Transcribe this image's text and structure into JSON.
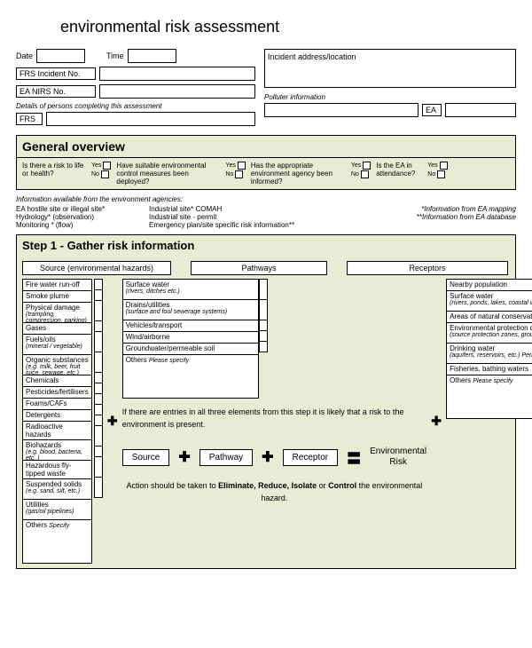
{
  "title": "environmental risk assessment",
  "fields": {
    "date": "Date",
    "time": "Time",
    "frs_incident": "FRS Incident No.",
    "ea_nirs": "EA NIRS No.",
    "incident_address": "Incident address/location",
    "polluter": "Polluter information",
    "details_note": "Details of persons completing this assessment",
    "frs": "FRS",
    "ea": "EA"
  },
  "overview": {
    "header": "General overview",
    "q1": "Is there a risk to life or health?",
    "q2": "Have suitable environmental control measures been deployed?",
    "q3": "Has the appropriate environment agency been informed?",
    "q4": "Is the EA in attendance?",
    "yes": "Yes",
    "no": "No"
  },
  "info_block": {
    "header": "Information available from the environment agencies:",
    "r1c1": "EA hostile site or illegal site*",
    "r1c2": "Industrial site* COMAH",
    "r2c1": "Hydrology* (observation)",
    "r2c2": "Industrial site - permit",
    "r3c1": "Monitoring * (flow)",
    "r3c2": "Emergency plan/site specific risk information**",
    "note1": "*Information from EA mapping",
    "note2": "**Information from EA database"
  },
  "step1": {
    "header": "Step 1 - Gather risk information",
    "col1": "Source (environmental hazards)",
    "col2": "Pathways",
    "col3": "Receptors",
    "sources": [
      {
        "t": "Fire water run-off"
      },
      {
        "t": "Smoke plume"
      },
      {
        "t": "Physical damage",
        "s": "(trampling, compression, parking)"
      },
      {
        "t": "Gases"
      },
      {
        "t": "Fuels/oils",
        "s": "(mineral / vegetable)"
      },
      {
        "t": "Organic substances",
        "s": "(e.g. milk, beer, fruit juice, sewage, etc.)"
      },
      {
        "t": "Chemicals"
      },
      {
        "t": "Pesticides/fertilisers"
      },
      {
        "t": "Foams/CAFs"
      },
      {
        "t": "Detergents"
      },
      {
        "t": "Radioactive hazards"
      },
      {
        "t": "Biohazards",
        "s": "(e.g. blood, bacteria, etc..)"
      },
      {
        "t": "Hazardous fly-tipped waste"
      },
      {
        "t": "Suspended solids",
        "s": "(e.g. sand, silt, etc.)"
      },
      {
        "t": "Utilities",
        "s": "(gas/oil pipelines)"
      }
    ],
    "pathways": [
      {
        "t": "Surface water",
        "s": "(rivers, ditches etc.)"
      },
      {
        "t": "Drains/utilities",
        "s": "(surface and foul sewerage systems)"
      },
      {
        "t": "Vehicles/transport"
      },
      {
        "t": "Wind/airborne"
      },
      {
        "t": "Groundwater/permeable soil"
      }
    ],
    "receptors": [
      {
        "t": "Nearby population"
      },
      {
        "t": "Surface water",
        "s": "(rivers, ponds, lakes, coastal waters etc)"
      },
      {
        "t": "Areas of natural conservation"
      },
      {
        "t": "Environmental protection designations",
        "s": "(source protection zones, groundwater, etc.)"
      },
      {
        "t": "Drinking water",
        "s": "(aquifers, reservoirs, etc.) Permits"
      },
      {
        "t": "Fisheries, bathing waters"
      }
    ],
    "others_label": "Others",
    "others_specify": "Specify",
    "others_please": "Please specify",
    "note": "If there are entries in all three elements from this step it is likely that a risk to the environment is present.",
    "eq": {
      "source": "Source",
      "pathway": "Pathway",
      "receptor": "Receptor",
      "result1": "Environmental",
      "result2": "Risk"
    },
    "action": "Action should be taken to <b>Eliminate, Reduce, Isolate</b> or <b>Control</b> the environmental hazard."
  },
  "colors": {
    "section_bg": "#e8ecd5"
  }
}
